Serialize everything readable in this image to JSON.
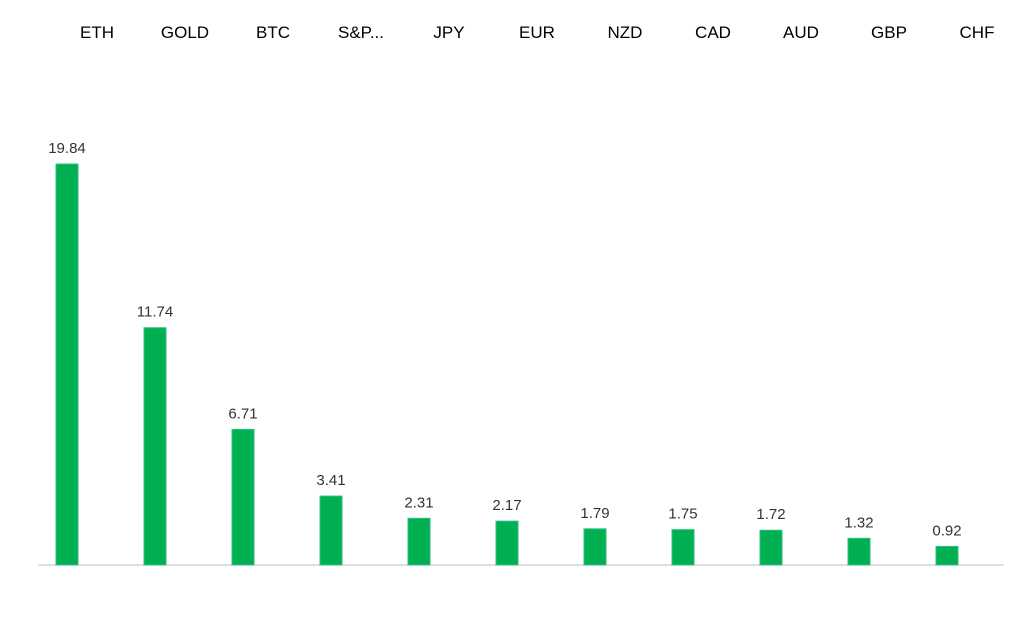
{
  "chart_data": {
    "type": "bar",
    "categories": [
      "ETH",
      "GOLD",
      "BTC",
      "S&P...",
      "JPY",
      "EUR",
      "NZD",
      "CAD",
      "AUD",
      "GBP",
      "CHF"
    ],
    "values": [
      19.84,
      11.74,
      6.71,
      3.41,
      2.31,
      2.17,
      1.79,
      1.75,
      1.72,
      1.32,
      0.92
    ],
    "value_labels": [
      "19.84",
      "11.74",
      "6.71",
      "3.41",
      "2.31",
      "2.17",
      "1.79",
      "1.75",
      "1.72",
      "1.32",
      "0.92"
    ],
    "title": "",
    "xlabel": "",
    "ylabel": "",
    "ylim": [
      0,
      19.84
    ],
    "category_axis_position": "top",
    "grid": false,
    "legend": "none",
    "colors": {
      "bar_fill": "#00b050",
      "bar_edge": "#2fbf8a",
      "axis_line": "#bfbfbf"
    }
  }
}
